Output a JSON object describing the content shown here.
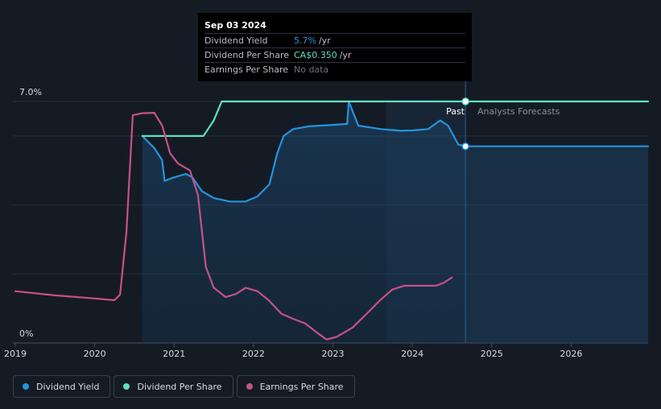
{
  "tooltip": {
    "date": "Sep 03 2024",
    "rows": [
      {
        "label": "Dividend Yield",
        "value": "5.7%",
        "unit": "/yr"
      },
      {
        "label": "Dividend Per Share",
        "value": "CA$0.350",
        "unit": "/yr"
      },
      {
        "label": "Earnings Per Share",
        "value": "No data",
        "unit": ""
      }
    ]
  },
  "labels": {
    "past": "Past",
    "forecast": "Analysts Forecasts"
  },
  "legend": [
    {
      "label": "Dividend Yield",
      "color": "#2394df"
    },
    {
      "label": "Dividend Per Share",
      "color": "#5fe0c4"
    },
    {
      "label": "Earnings Per Share",
      "color": "#c8508a"
    }
  ],
  "chart_data": {
    "type": "line",
    "x_ticks": [
      "2019",
      "2020",
      "2021",
      "2022",
      "2023",
      "2024",
      "2025",
      "2026"
    ],
    "y_ticks": [
      "0%",
      "7.0%"
    ],
    "ylim": [
      0,
      7
    ],
    "xlim": [
      2018.97,
      2026.97
    ],
    "grid": true,
    "past_end": 2024.67,
    "forecast_shade_start": 2023.67,
    "series": [
      {
        "name": "Dividend Yield",
        "color": "#2394df",
        "points": [
          [
            2020.6,
            6.0
          ],
          [
            2020.75,
            5.65
          ],
          [
            2020.85,
            5.3
          ],
          [
            2020.88,
            4.7
          ],
          [
            2021.0,
            4.8
          ],
          [
            2021.15,
            4.9
          ],
          [
            2021.23,
            4.8
          ],
          [
            2021.35,
            4.4
          ],
          [
            2021.5,
            4.2
          ],
          [
            2021.7,
            4.1
          ],
          [
            2021.9,
            4.1
          ],
          [
            2022.05,
            4.25
          ],
          [
            2022.2,
            4.6
          ],
          [
            2022.3,
            5.5
          ],
          [
            2022.38,
            6.0
          ],
          [
            2022.5,
            6.2
          ],
          [
            2022.7,
            6.28
          ],
          [
            2023.0,
            6.32
          ],
          [
            2023.18,
            6.35
          ],
          [
            2023.2,
            7.0
          ],
          [
            2023.32,
            6.3
          ],
          [
            2023.6,
            6.2
          ],
          [
            2023.85,
            6.15
          ],
          [
            2024.0,
            6.16
          ],
          [
            2024.2,
            6.2
          ],
          [
            2024.35,
            6.45
          ],
          [
            2024.45,
            6.3
          ],
          [
            2024.58,
            5.75
          ],
          [
            2024.67,
            5.7
          ],
          [
            2026.97,
            5.7
          ]
        ]
      },
      {
        "name": "Dividend Per Share",
        "color": "#5fe0c4",
        "points": [
          [
            2020.6,
            6.0
          ],
          [
            2021.0,
            6.0
          ],
          [
            2021.37,
            6.0
          ],
          [
            2021.5,
            6.45
          ],
          [
            2021.6,
            7.0
          ],
          [
            2022.8,
            7.0
          ],
          [
            2023.0,
            7.0
          ],
          [
            2023.22,
            7.0
          ],
          [
            2024.0,
            7.0
          ],
          [
            2024.67,
            7.0
          ],
          [
            2026.97,
            7.0
          ]
        ]
      },
      {
        "name": "Earnings Per Share",
        "color": "#c8508a",
        "points": [
          [
            2019.0,
            1.5
          ],
          [
            2019.5,
            1.38
          ],
          [
            2019.95,
            1.3
          ],
          [
            2020.25,
            1.24
          ],
          [
            2020.32,
            1.4
          ],
          [
            2020.4,
            3.2
          ],
          [
            2020.48,
            6.6
          ],
          [
            2020.6,
            6.66
          ],
          [
            2020.75,
            6.67
          ],
          [
            2020.85,
            6.3
          ],
          [
            2020.95,
            5.5
          ],
          [
            2021.05,
            5.2
          ],
          [
            2021.2,
            5.0
          ],
          [
            2021.3,
            4.3
          ],
          [
            2021.4,
            2.2
          ],
          [
            2021.5,
            1.6
          ],
          [
            2021.65,
            1.33
          ],
          [
            2021.78,
            1.42
          ],
          [
            2021.9,
            1.6
          ],
          [
            2022.05,
            1.5
          ],
          [
            2022.2,
            1.22
          ],
          [
            2022.35,
            0.85
          ],
          [
            2022.5,
            0.7
          ],
          [
            2022.65,
            0.57
          ],
          [
            2022.8,
            0.3
          ],
          [
            2022.92,
            0.1
          ],
          [
            2023.05,
            0.18
          ],
          [
            2023.25,
            0.45
          ],
          [
            2023.45,
            0.9
          ],
          [
            2023.6,
            1.25
          ],
          [
            2023.75,
            1.55
          ],
          [
            2023.9,
            1.66
          ],
          [
            2024.1,
            1.66
          ],
          [
            2024.3,
            1.66
          ],
          [
            2024.4,
            1.75
          ],
          [
            2024.5,
            1.9
          ]
        ]
      }
    ]
  }
}
